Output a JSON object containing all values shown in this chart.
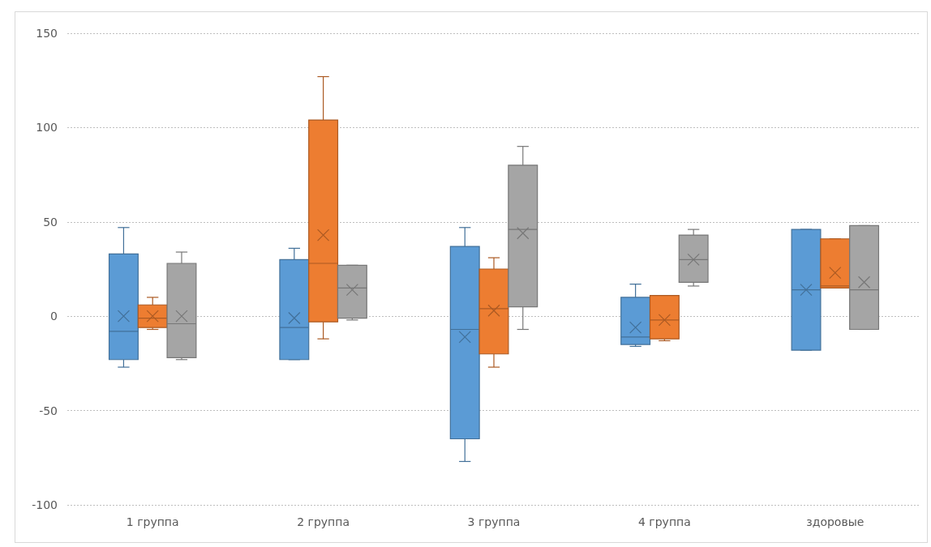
{
  "chart_data": {
    "type": "box",
    "categories": [
      "1 группа",
      "2 группа",
      "3 группа",
      "4 группа",
      "здоровые"
    ],
    "ylim": [
      -100,
      150
    ],
    "yticks": [
      -100,
      -50,
      0,
      50,
      100,
      150
    ],
    "grid": "y",
    "series": [
      {
        "color": "#5b9bd5",
        "boxes": [
          {
            "low": -27,
            "q1": -23,
            "median": -8,
            "q3": 33,
            "high": 47,
            "mean": 0
          },
          {
            "low": -23,
            "q1": -23,
            "median": -6,
            "q3": 30,
            "high": 36,
            "mean": -1
          },
          {
            "low": -77,
            "q1": -65,
            "median": -7,
            "q3": 37,
            "high": 47,
            "mean": -11
          },
          {
            "low": -16,
            "q1": -15,
            "median": -11,
            "q3": 10,
            "high": 17,
            "mean": -6
          },
          {
            "low": -18,
            "q1": -18,
            "median": 14,
            "q3": 46,
            "high": 46,
            "mean": 14
          }
        ]
      },
      {
        "color": "#ed7d31",
        "boxes": [
          {
            "low": -7,
            "q1": -6,
            "median": -1,
            "q3": 6,
            "high": 10,
            "mean": 0
          },
          {
            "low": -12,
            "q1": -3,
            "median": 28,
            "q3": 104,
            "high": 127,
            "mean": 43
          },
          {
            "low": -27,
            "q1": -20,
            "median": 4,
            "q3": 25,
            "high": 31,
            "mean": 3
          },
          {
            "low": -13,
            "q1": -12,
            "median": -2,
            "q3": 11,
            "high": 11,
            "mean": -2
          },
          {
            "low": 15,
            "q1": 15,
            "median": 16,
            "q3": 41,
            "high": 41,
            "mean": 23
          }
        ]
      },
      {
        "color": "#a5a5a5",
        "boxes": [
          {
            "low": -23,
            "q1": -22,
            "median": -4,
            "q3": 28,
            "high": 34,
            "mean": 0
          },
          {
            "low": -2,
            "q1": -1,
            "median": 15,
            "q3": 27,
            "high": 27,
            "mean": 14
          },
          {
            "low": -7,
            "q1": 5,
            "median": 46,
            "q3": 80,
            "high": 90,
            "mean": 44
          },
          {
            "low": 16,
            "q1": 18,
            "median": 30,
            "q3": 43,
            "high": 46,
            "mean": 30
          },
          {
            "low": -7,
            "q1": -7,
            "median": 14,
            "q3": 48,
            "high": 48,
            "mean": 18
          }
        ]
      }
    ]
  }
}
